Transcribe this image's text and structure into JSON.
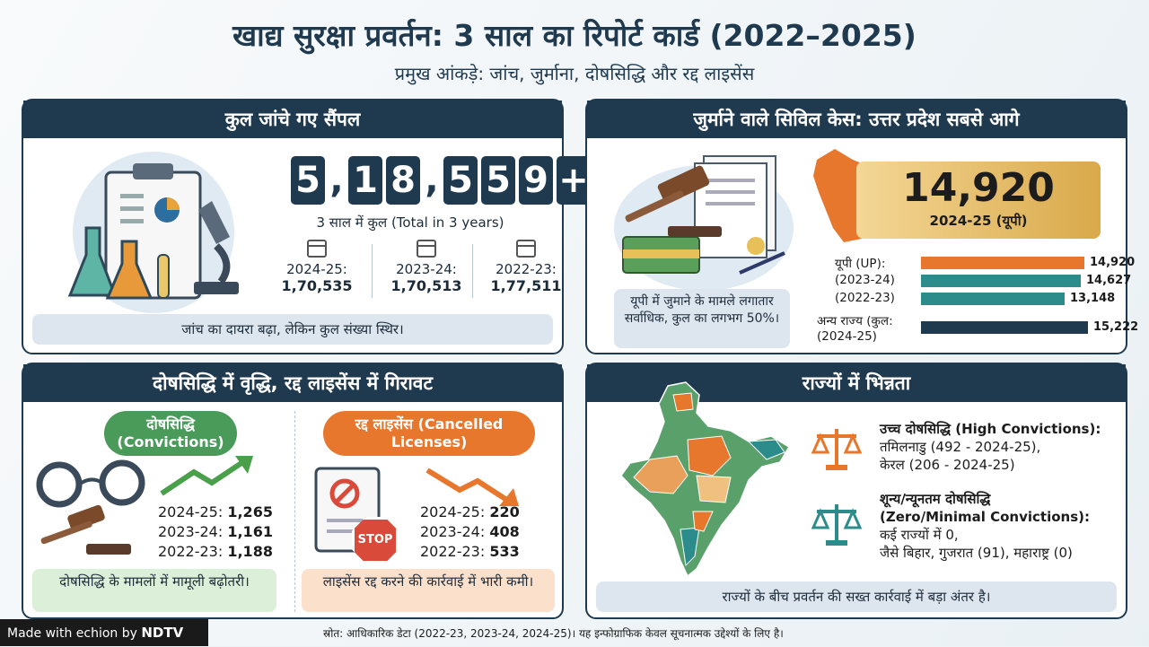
{
  "header": {
    "title": "खाद्य सुरक्षा प्रवर्तन: 3 साल का रिपोर्ट कार्ड (2022–2025)",
    "subtitle": "प्रमुख आंकड़े: जांच, जुर्माना, दोषसिद्धि और रद्द लाइसेंस"
  },
  "samples": {
    "heading": "कुल जांचे गए सैंपल",
    "total_digits": [
      "5",
      ",",
      "1",
      "8",
      ",",
      "5",
      "5",
      "9",
      "+"
    ],
    "total_caption": "3 साल में कुल (Total in 3 years)",
    "years": [
      {
        "label": "2024-25:",
        "value": "1,70,535"
      },
      {
        "label": "2023-24:",
        "value": "1,70,513"
      },
      {
        "label": "2022-23:",
        "value": "1,77,511"
      }
    ],
    "footer": "जांच का दायरा बढ़ा, लेकिन कुल संख्या स्थिर।"
  },
  "fines": {
    "heading": "जुर्माने वाले सिविल केस: उत्तर प्रदेश सबसे आगे",
    "big_value": "14,920",
    "big_caption": "2024-25 (यूपी)",
    "note": "यूपी में जुमाने के मामले लगातार सर्वाधिक, कुल का लगभग 50%।"
  },
  "chart_data": {
    "type": "bar",
    "orientation": "horizontal",
    "categories": [
      "यूपी (UP):",
      "(2023-24)",
      "(2022-23)",
      "अन्य राज्य (कुल: (2024-25)"
    ],
    "values": [
      14920,
      14627,
      13148,
      15222
    ],
    "value_labels": [
      "14,920",
      "14,627",
      "13,148",
      "15,222"
    ],
    "colors": [
      "#e8772e",
      "#2c8c8c",
      "#2c8c8c",
      "#1f3a4f"
    ],
    "xlim": [
      0,
      16000
    ]
  },
  "convictions": {
    "heading": "दोषसिद्धि में वृद्धि, रद्द लाइसेंस में गिरावट",
    "conv_pill": "दोषसिद्धि (Convictions)",
    "conv_rows": [
      {
        "label": "2024-25:",
        "value": "1,265"
      },
      {
        "label": "2023-24:",
        "value": "1,161"
      },
      {
        "label": "2022-23:",
        "value": "1,188"
      }
    ],
    "conv_note": "दोषसिद्धि के मामलों में मामूली बढ़ोतरी।",
    "lic_pill": "रद्द लाइसेंस (Cancelled Licenses)",
    "lic_rows": [
      {
        "label": "2024-25:",
        "value": "220"
      },
      {
        "label": "2023-24:",
        "value": "408"
      },
      {
        "label": "2022-23:",
        "value": "533"
      }
    ],
    "lic_note": "लाइसेंस रद्द करने की कार्रवाई में भारी कमी।",
    "stop_sign": "STOP"
  },
  "states": {
    "heading": "राज्यों में भिन्नता",
    "high_title": "उच्च दोषसिद्धि (High Convictions):",
    "high_line1": "तमिलनाडु (492 - 2024-25),",
    "high_line2": "केरल (206 - 2024-25)",
    "low_title1": "शून्य/न्यूनतम दोषसिद्धि",
    "low_title2": "(Zero/Minimal Convictions):",
    "low_line1": "कई राज्यों में 0,",
    "low_line2": "जैसे बिहार, गुजरात (91), महाराष्ट्र (0)",
    "footer": "राज्यों के बीच प्रवर्तन की सख्त कार्रवाई में बड़ा अंतर है।"
  },
  "footer": {
    "brand_prefix": "Made with",
    "brand_mid": "echion by",
    "brand_name": "NDTV",
    "source": "स्रोत: आधिकारिक डेटा (2022-23, 2023-24, 2024-25)। यह इन्फोग्राफिक केवल सूचनात्मक उद्देश्यों के लिए है।"
  }
}
